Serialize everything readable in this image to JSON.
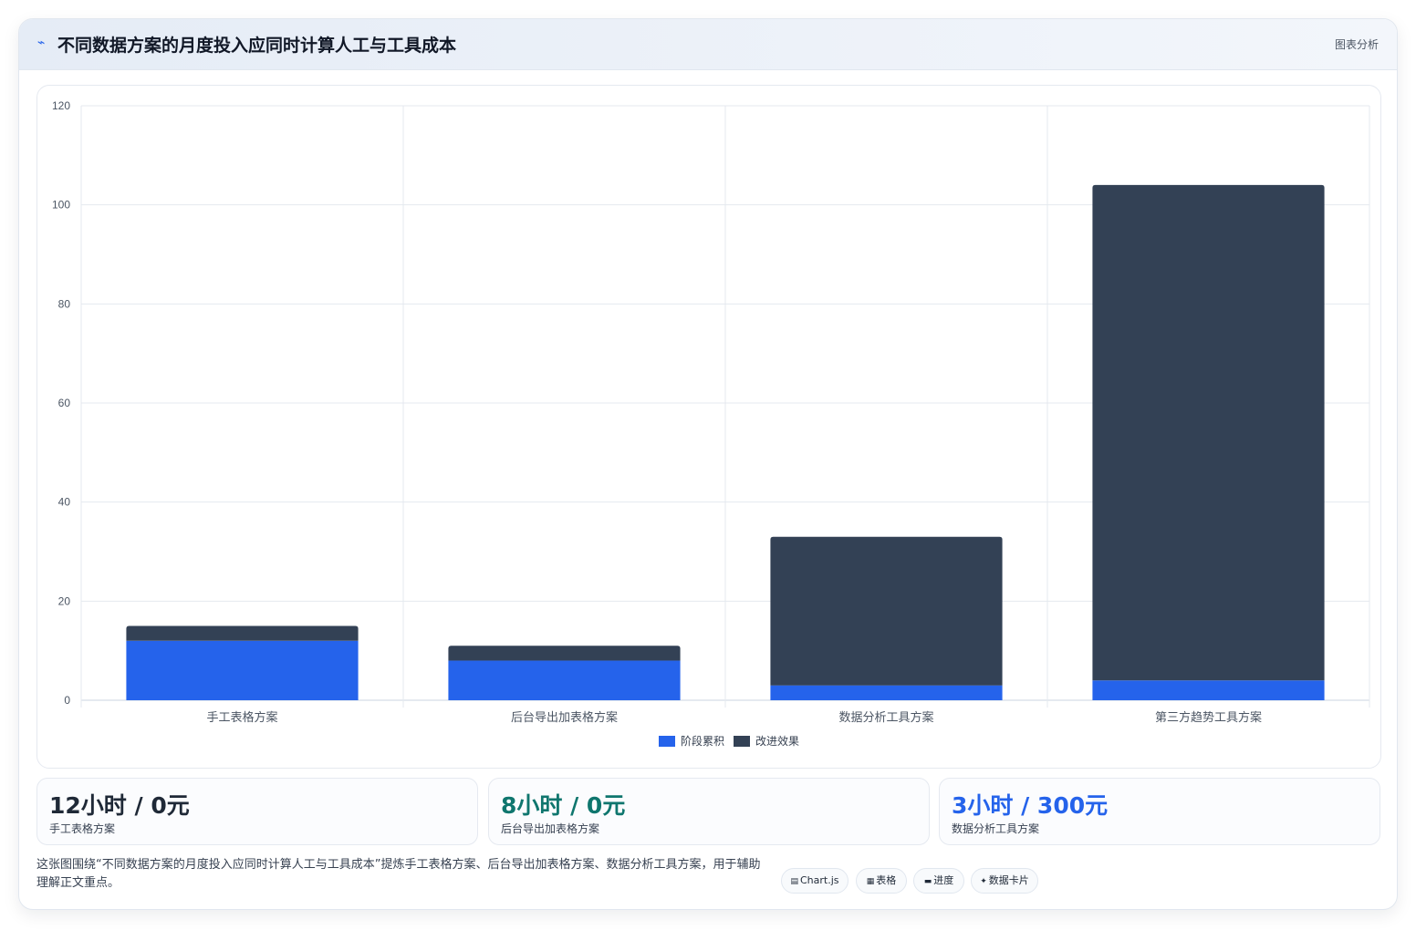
{
  "header": {
    "icon": "chart-line-icon",
    "title": "不同数据方案的月度投入应同时计算人工与工具成本",
    "tag": "图表分析"
  },
  "chart_data": {
    "type": "bar",
    "stacked": true,
    "categories": [
      "手工表格方案",
      "后台导出加表格方案",
      "数据分析工具方案",
      "第三方趋势工具方案"
    ],
    "series": [
      {
        "name": "阶段累积",
        "values": [
          12,
          8,
          3,
          4
        ],
        "color": "#2563eb"
      },
      {
        "name": "改进效果",
        "values": [
          3,
          3,
          30,
          100
        ],
        "color": "#334155"
      }
    ],
    "ylim": [
      0,
      120
    ],
    "yticks": [
      0,
      20,
      40,
      60,
      80,
      100,
      120
    ],
    "grid": true,
    "legend_position": "bottom-center"
  },
  "stats": [
    {
      "value": "12小时 / 0元",
      "label": "手工表格方案",
      "color": "#1f2937"
    },
    {
      "value": "8小时 / 0元",
      "label": "后台导出加表格方案",
      "color": "#0f766e"
    },
    {
      "value": "3小时 / 300元",
      "label": "数据分析工具方案",
      "color": "#2563eb"
    }
  ],
  "caption": "这张图围绕“不同数据方案的月度投入应同时计算人工与工具成本”提炼手工表格方案、后台导出加表格方案、数据分析工具方案，用于辅助理解正文重点。",
  "chips": [
    {
      "icon": "chart-icon",
      "glyph": "▤",
      "label": "Chart.js"
    },
    {
      "icon": "table-icon",
      "glyph": "▦",
      "label": "表格"
    },
    {
      "icon": "progress-icon",
      "glyph": "▬",
      "label": "进度"
    },
    {
      "icon": "sparkle-icon",
      "glyph": "✦",
      "label": "数据卡片"
    }
  ]
}
